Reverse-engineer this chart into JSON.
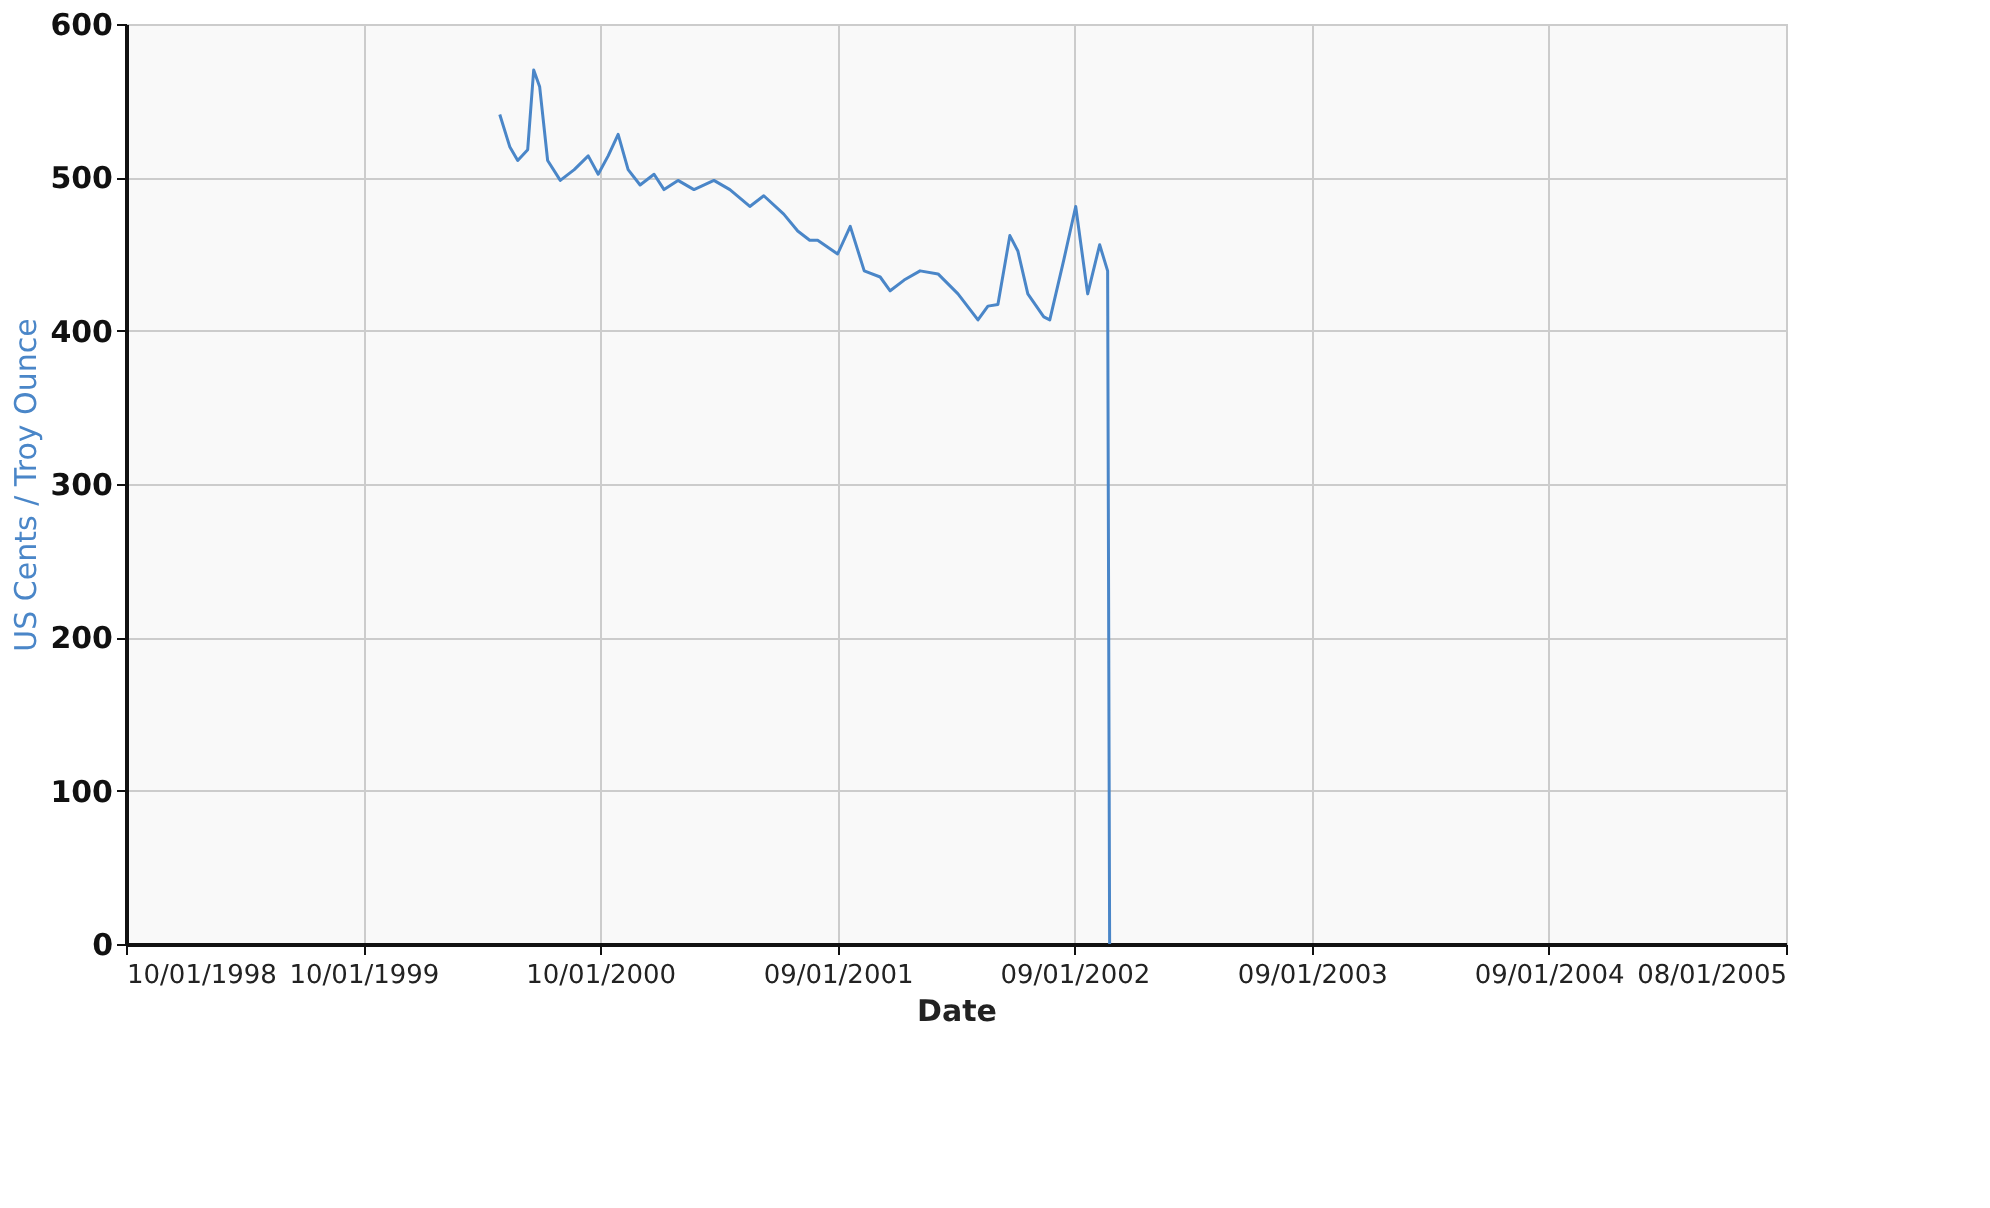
{
  "chart_data": {
    "type": "line",
    "xlabel": "Date",
    "ylabel": "US Cents / Troy Ounce",
    "x": [
      "2000-04-15",
      "2000-04-30",
      "2000-05-12",
      "2000-05-27",
      "2000-06-05",
      "2000-06-14",
      "2000-06-26",
      "2000-07-15",
      "2000-08-05",
      "2000-08-26",
      "2000-09-10",
      "2000-09-25",
      "2000-10-10",
      "2000-10-25",
      "2000-11-12",
      "2000-12-03",
      "2000-12-18",
      "2001-01-08",
      "2001-02-01",
      "2001-03-03",
      "2001-03-27",
      "2001-04-26",
      "2001-05-17",
      "2001-06-16",
      "2001-07-07",
      "2001-07-25",
      "2001-08-06",
      "2001-09-05",
      "2001-09-24",
      "2001-10-15",
      "2001-11-08",
      "2001-11-23",
      "2001-12-14",
      "2002-01-07",
      "2002-02-03",
      "2002-03-05",
      "2002-04-04",
      "2002-04-19",
      "2002-05-04",
      "2002-05-22",
      "2002-06-03",
      "2002-06-18",
      "2002-07-12",
      "2002-07-21",
      "2002-08-11",
      "2002-08-29",
      "2002-09-16",
      "2002-10-04",
      "2002-10-16",
      "2002-10-19"
    ],
    "series": [
      {
        "color": "#4a86c8",
        "values": [
          541,
          520,
          511,
          518,
          570,
          559,
          511,
          498,
          505,
          514,
          502,
          514,
          528,
          505,
          495,
          502,
          492,
          498,
          492,
          498,
          492,
          481,
          488,
          476,
          465,
          459,
          459,
          450,
          468,
          439,
          435,
          426,
          433,
          439,
          437,
          424,
          407,
          416,
          417,
          462,
          452,
          424,
          409,
          407,
          446,
          481,
          424,
          456,
          439,
          0
        ]
      }
    ],
    "xlim": [
      "1998-10-01",
      "2005-08-01"
    ],
    "xticks": [
      {
        "value": "1998-10-01",
        "label": "10/01/1998"
      },
      {
        "value": "1999-09-23",
        "label": "10/01/1999"
      },
      {
        "value": "2000-09-13",
        "label": "10/01/2000"
      },
      {
        "value": "2001-09-05",
        "label": "09/01/2001"
      },
      {
        "value": "2002-08-27",
        "label": "09/01/2002"
      },
      {
        "value": "2003-08-19",
        "label": "09/01/2003"
      },
      {
        "value": "2004-08-09",
        "label": "09/01/2004"
      },
      {
        "value": "2005-08-01",
        "label": "08/01/2005"
      }
    ],
    "ylim": [
      0,
      600
    ],
    "yticks": [
      0,
      100,
      200,
      300,
      400,
      500,
      600
    ],
    "grid": true,
    "marker": "none",
    "line_style": "solid"
  }
}
